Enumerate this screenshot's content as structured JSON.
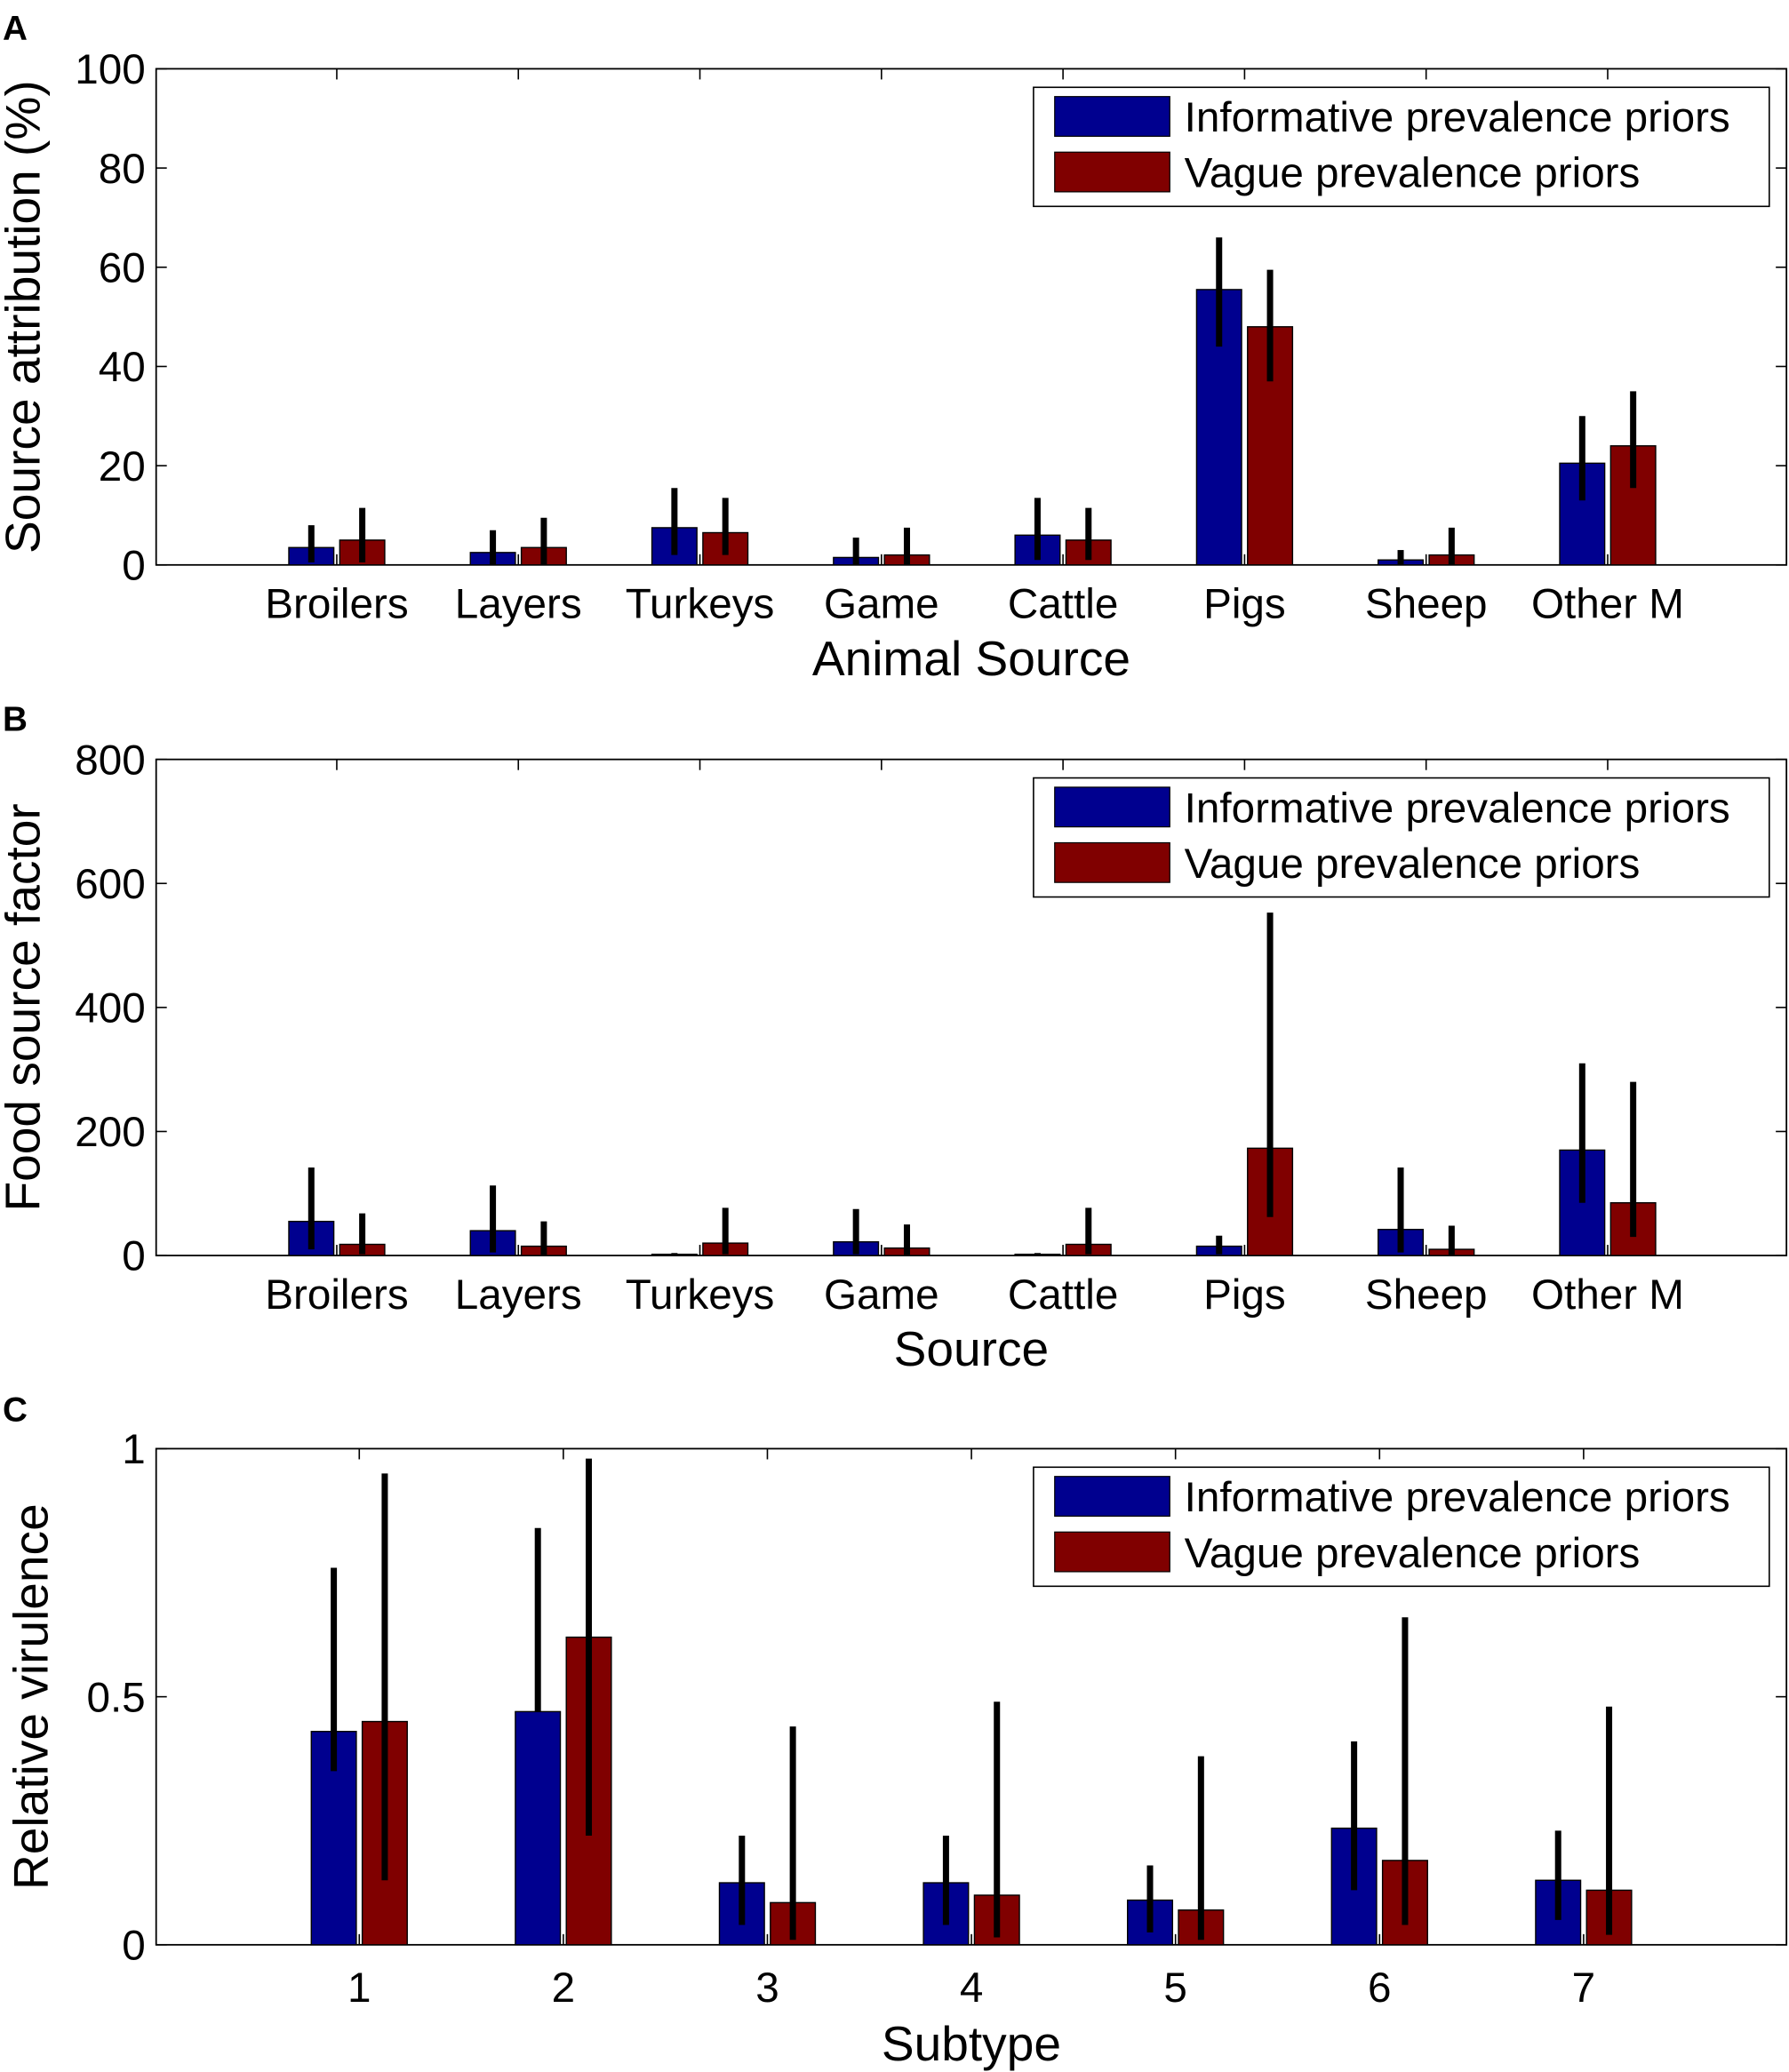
{
  "colors": {
    "informative": "#00008F",
    "vague": "#800000",
    "axis": "#000000",
    "errorbar": "#000000"
  },
  "chart_data": [
    {
      "type": "bar",
      "panel_label": "A",
      "ylabel": "Source attribution (%)",
      "xlabel": "Animal Source",
      "ylim": [
        0,
        100
      ],
      "yticks": [
        "0",
        "20",
        "40",
        "60",
        "80",
        "100"
      ],
      "ytick_values": [
        0,
        20,
        40,
        60,
        80,
        100
      ],
      "categories": [
        "Broilers",
        "Layers",
        "Turkeys",
        "Game",
        "Cattle",
        "Pigs",
        "Sheep",
        "Other M"
      ],
      "legend": {
        "location": "top-right"
      },
      "series": [
        {
          "name": "Informative prevalence priors",
          "values": [
            3.5,
            2.5,
            7.5,
            1.5,
            6,
            55.5,
            1,
            20.5
          ],
          "lower": [
            0.5,
            0,
            2,
            0,
            1,
            44,
            0,
            13
          ],
          "upper": [
            8,
            7,
            15.5,
            5.5,
            13.5,
            66,
            3,
            30
          ]
        },
        {
          "name": "Vague prevalence priors",
          "values": [
            5,
            3.5,
            6.5,
            2,
            5,
            48,
            2,
            24
          ],
          "lower": [
            0.5,
            0,
            2,
            0,
            1,
            37,
            0,
            15.5
          ],
          "upper": [
            11.5,
            9.5,
            13.5,
            7.5,
            11.5,
            59.5,
            7.5,
            35
          ]
        }
      ]
    },
    {
      "type": "bar",
      "panel_label": "B",
      "ylabel": "Food source factor",
      "xlabel": "Source",
      "ylim": [
        0,
        800
      ],
      "yticks": [
        "0",
        "200",
        "400",
        "600",
        "800"
      ],
      "ytick_values": [
        0,
        200,
        400,
        600,
        800
      ],
      "categories": [
        "Broilers",
        "Layers",
        "Turkeys",
        "Game",
        "Cattle",
        "Pigs",
        "Sheep",
        "Other M"
      ],
      "legend": {
        "location": "top-right"
      },
      "series": [
        {
          "name": "Informative prevalence priors",
          "values": [
            55,
            40,
            2,
            22,
            2,
            15,
            42,
            170
          ],
          "lower": [
            10,
            5,
            0,
            2,
            0,
            2,
            5,
            85
          ],
          "upper": [
            142,
            113,
            4,
            75,
            4,
            32,
            142,
            310
          ]
        },
        {
          "name": "Vague prevalence priors",
          "values": [
            18,
            15,
            20,
            12,
            18,
            173,
            10,
            85
          ],
          "lower": [
            2,
            1,
            2,
            1,
            2,
            62,
            1,
            30
          ],
          "upper": [
            68,
            55,
            77,
            50,
            77,
            553,
            48,
            280
          ]
        }
      ]
    },
    {
      "type": "bar",
      "panel_label": "C",
      "ylabel": "Relative virulence",
      "xlabel": "Subtype",
      "ylim": [
        0,
        1
      ],
      "yticks": [
        "0",
        "0.5",
        "1"
      ],
      "ytick_values": [
        0,
        0.5,
        1
      ],
      "categories": [
        "1",
        "2",
        "3",
        "4",
        "5",
        "6",
        "7"
      ],
      "legend": {
        "location": "top-right"
      },
      "series": [
        {
          "name": "Informative prevalence priors",
          "values": [
            0.43,
            0.47,
            0.125,
            0.125,
            0.09,
            0.235,
            0.13
          ],
          "lower": [
            0.35,
            0.47,
            0.04,
            0.04,
            0.025,
            0.11,
            0.05
          ],
          "upper": [
            0.76,
            0.84,
            0.22,
            0.22,
            0.16,
            0.41,
            0.23
          ]
        },
        {
          "name": "Vague prevalence priors",
          "values": [
            0.45,
            0.62,
            0.085,
            0.1,
            0.07,
            0.17,
            0.11
          ],
          "lower": [
            0.13,
            0.22,
            0.01,
            0.015,
            0.01,
            0.04,
            0.02
          ],
          "upper": [
            0.95,
            0.98,
            0.44,
            0.49,
            0.38,
            0.66,
            0.48
          ]
        }
      ]
    }
  ]
}
